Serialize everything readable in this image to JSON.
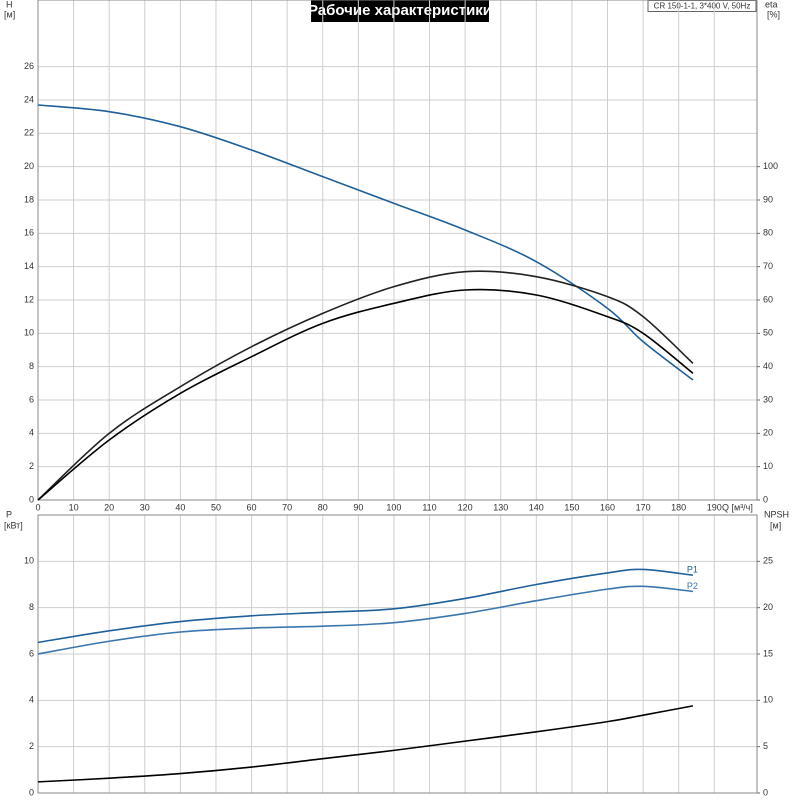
{
  "chart_data": [
    {
      "type": "line",
      "title": "Рабочие характеристики",
      "subtitle": "CR 150-1-1, 3*400 V, 50Hz",
      "y_label": "H",
      "y_unit": "[м]",
      "y2_label": "eta",
      "y2_unit": "[%]",
      "x_label": "Q [м³/ч]",
      "x": [
        0,
        20,
        40,
        60,
        80,
        100,
        120,
        140,
        160,
        170,
        184
      ],
      "xlim": [
        0,
        202
      ],
      "xticks": [
        0,
        10,
        20,
        30,
        40,
        50,
        60,
        70,
        80,
        90,
        100,
        110,
        120,
        130,
        140,
        150,
        160,
        170,
        180,
        190
      ],
      "ylim": [
        0,
        30
      ],
      "yticks": [
        0,
        2,
        4,
        6,
        8,
        10,
        12,
        14,
        16,
        18,
        20,
        22,
        24,
        26
      ],
      "y2lim": [
        0,
        150
      ],
      "y2ticks": [
        0,
        10,
        20,
        30,
        40,
        50,
        60,
        70,
        80,
        90,
        100
      ],
      "grid": true,
      "series": [
        {
          "color": "#1f5f9a",
          "values": [
            23.7,
            23.3,
            22.4,
            21.0,
            19.4,
            17.8,
            16.2,
            14.3,
            11.5,
            9.5,
            7.2
          ]
        },
        {
          "color": "#222222",
          "axis": "y2",
          "values": [
            0,
            20,
            34,
            46,
            56,
            64,
            68.5,
            67,
            61,
            55,
            41
          ]
        },
        {
          "color": "#000000",
          "axis": "y2",
          "values": [
            0,
            18,
            32,
            43,
            53,
            59,
            63,
            61.5,
            55,
            50,
            38
          ]
        }
      ]
    },
    {
      "type": "line",
      "y_label": "P",
      "y_unit": "[кВт]",
      "y2_label": "NPSH",
      "y2_unit": "[м]",
      "x": [
        0,
        20,
        40,
        60,
        80,
        100,
        120,
        140,
        160,
        170,
        184
      ],
      "xlim": [
        0,
        202
      ],
      "ylim": [
        0,
        12
      ],
      "yticks": [
        0,
        2,
        4,
        6,
        8,
        10
      ],
      "y2lim": [
        0,
        30
      ],
      "y2ticks": [
        0,
        5,
        10,
        15,
        20,
        25
      ],
      "grid": true,
      "series": [
        {
          "name": "P1",
          "color": "#1f5f9a",
          "values": [
            6.5,
            7.0,
            7.4,
            7.65,
            7.8,
            7.95,
            8.4,
            9.0,
            9.5,
            9.65,
            9.4
          ]
        },
        {
          "name": "P2",
          "color": "#3a76ad",
          "values": [
            6.0,
            6.55,
            6.95,
            7.12,
            7.2,
            7.35,
            7.75,
            8.3,
            8.8,
            8.92,
            8.7
          ]
        },
        {
          "color": "#000000",
          "axis": "y2",
          "values": [
            1.2,
            1.6,
            2.1,
            2.8,
            3.7,
            4.6,
            5.6,
            6.6,
            7.7,
            8.4,
            9.4
          ]
        }
      ]
    }
  ]
}
